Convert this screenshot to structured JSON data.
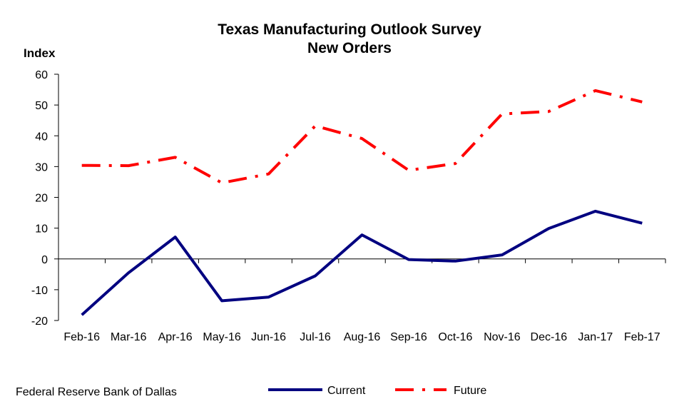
{
  "chart_data": {
    "type": "line",
    "title": "Texas Manufacturing Outlook Survey",
    "subtitle": "New Orders",
    "ylabel": "Index",
    "xlabel": "",
    "categories": [
      "Feb-16",
      "Mar-16",
      "Apr-16",
      "May-16",
      "Jun-16",
      "Jul-16",
      "Aug-16",
      "Sep-16",
      "Oct-16",
      "Nov-16",
      "Dec-16",
      "Jan-17",
      "Feb-17"
    ],
    "ylim": [
      -20,
      60
    ],
    "yticks": [
      -20,
      -10,
      0,
      10,
      20,
      30,
      40,
      50,
      60
    ],
    "grid": false,
    "legend_position": "bottom",
    "series": [
      {
        "name": "Current",
        "color": "#000080",
        "style": "solid",
        "values": [
          -18.2,
          -4.5,
          7.1,
          -13.6,
          -12.4,
          -5.5,
          7.8,
          -0.2,
          -0.7,
          1.3,
          9.9,
          15.5,
          11.6
        ]
      },
      {
        "name": "Future",
        "color": "#ff0000",
        "style": "dash-dot",
        "values": [
          30.4,
          30.3,
          33.0,
          24.7,
          27.6,
          43.2,
          39.1,
          28.8,
          31.0,
          47.1,
          47.9,
          54.7,
          51.0
        ]
      }
    ]
  },
  "footer": {
    "source": "Federal Reserve Bank of Dallas"
  }
}
